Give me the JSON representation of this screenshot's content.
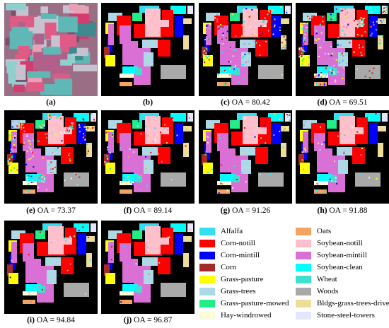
{
  "panels": [
    {
      "id": "a",
      "letter": "(a)",
      "oa_label": "",
      "oa_value": "",
      "kind": "rgb"
    },
    {
      "id": "b",
      "letter": "(b)",
      "oa_label": "",
      "oa_value": "",
      "kind": "gt",
      "noise": 0.0
    },
    {
      "id": "c",
      "letter": "(c)",
      "oa_label": "OA = ",
      "oa_value": "80.42",
      "kind": "gt",
      "noise": 0.26
    },
    {
      "id": "d",
      "letter": "(d)",
      "oa_label": "OA = ",
      "oa_value": "69.51",
      "kind": "gt",
      "noise": 0.36
    },
    {
      "id": "e",
      "letter": "(e)",
      "oa_label": "OA = ",
      "oa_value": "73.37",
      "kind": "gt",
      "noise": 0.32
    },
    {
      "id": "f",
      "letter": "(f)",
      "oa_label": "OA = ",
      "oa_value": "89.14",
      "kind": "gt",
      "noise": 0.1
    },
    {
      "id": "g",
      "letter": "(g)",
      "oa_label": "OA = ",
      "oa_value": "91.26",
      "kind": "gt",
      "noise": 0.08
    },
    {
      "id": "h",
      "letter": "(h)",
      "oa_label": "OA = ",
      "oa_value": "91.88",
      "kind": "gt",
      "noise": 0.07
    },
    {
      "id": "i",
      "letter": "(i)",
      "oa_label": "OA = ",
      "oa_value": "94.84",
      "kind": "gt",
      "noise": 0.04
    },
    {
      "id": "j",
      "letter": "(j)",
      "oa_label": "OA = ",
      "oa_value": "96.87",
      "kind": "gt",
      "noise": 0.02
    }
  ],
  "legend": [
    {
      "label": "Alfalfa",
      "color": "#33e0f0"
    },
    {
      "label": "Corn-notill",
      "color": "#ff0000"
    },
    {
      "label": "Corn-mintill",
      "color": "#0000ff"
    },
    {
      "label": "Corn",
      "color": "#a52a2a"
    },
    {
      "label": "Grass-pasture",
      "color": "#ffff00"
    },
    {
      "label": "Grass-trees",
      "color": "#add8e6"
    },
    {
      "label": "Grass-pasture-mowed",
      "color": "#22ee88"
    },
    {
      "label": "Hay-windrowed",
      "color": "#fdfbd8"
    },
    {
      "label": "Oats",
      "color": "#f4a460"
    },
    {
      "label": "Soybean-notill",
      "color": "#ffc0cb"
    },
    {
      "label": "Soybean-mintill",
      "color": "#da70d6"
    },
    {
      "label": "Soybean-clean",
      "color": "#00ffff"
    },
    {
      "label": "Wheat",
      "color": "#40e0d0"
    },
    {
      "label": "Woods",
      "color": "#a9a9a9"
    },
    {
      "label": "Bldgs-grass-trees-drives",
      "color": "#eedd99"
    },
    {
      "label": "Stone-steel-towers",
      "color": "#e6e6fa"
    }
  ]
}
